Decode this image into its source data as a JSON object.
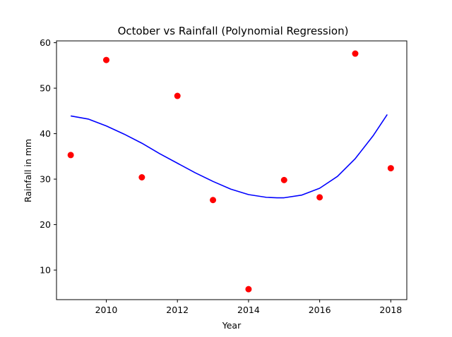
{
  "chart_data": {
    "type": "scatter",
    "title": "October vs Rainfall (Polynomial Regression)",
    "xlabel": "Year",
    "ylabel": "Rainfall in mm",
    "xlim": [
      2008.6,
      2018.45
    ],
    "ylim": [
      3.5,
      60.4
    ],
    "xticks": [
      2010,
      2012,
      2014,
      2016,
      2018
    ],
    "yticks": [
      10,
      20,
      30,
      40,
      50,
      60
    ],
    "grid": false,
    "legend": "none",
    "series": [
      {
        "kind": "points",
        "color": "#ff0000",
        "x": [
          2009,
          2010,
          2011,
          2012,
          2013,
          2014,
          2015,
          2016,
          2017,
          2018
        ],
        "y": [
          35.3,
          56.2,
          30.4,
          48.3,
          25.4,
          5.8,
          29.8,
          26.0,
          57.6,
          32.4
        ]
      },
      {
        "kind": "fit-line",
        "color": "#0000ff",
        "x": [
          2009.0,
          2009.5,
          2010.0,
          2010.5,
          2011.0,
          2011.5,
          2012.0,
          2012.5,
          2013.0,
          2013.5,
          2014.0,
          2014.5,
          2014.8,
          2015.0,
          2015.5,
          2016.0,
          2016.5,
          2017.0,
          2017.5,
          2017.9
        ],
        "y": [
          43.9,
          43.2,
          41.7,
          39.9,
          37.9,
          35.6,
          33.5,
          31.4,
          29.5,
          27.8,
          26.6,
          26.0,
          25.9,
          25.9,
          26.5,
          28.0,
          30.6,
          34.5,
          39.5,
          44.2
        ]
      }
    ]
  }
}
